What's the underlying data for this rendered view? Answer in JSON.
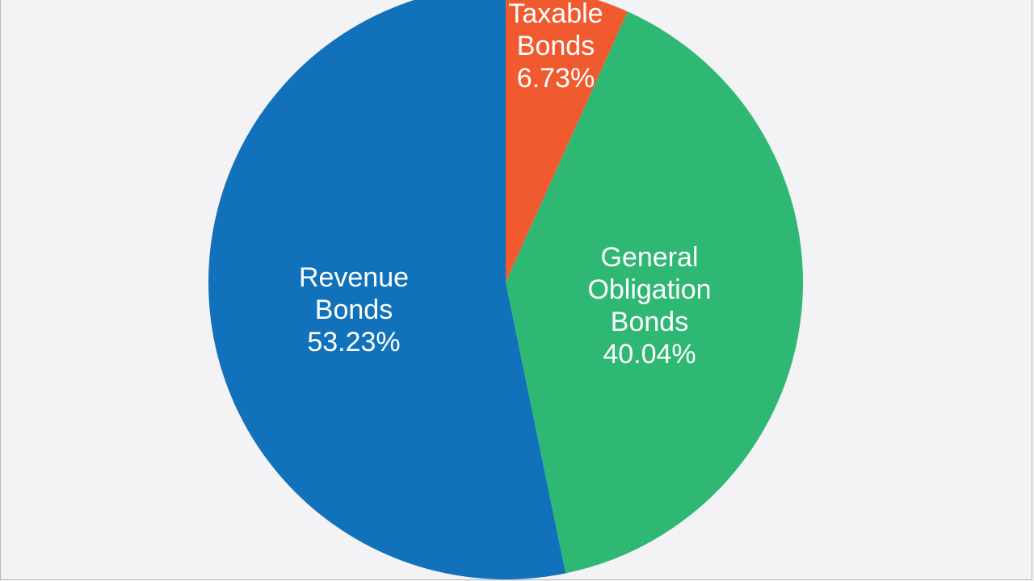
{
  "chart_data": {
    "type": "pie",
    "title": "",
    "slices": [
      {
        "label_lines": [
          "Taxable",
          "Bonds"
        ],
        "value_text": "6.73%",
        "value": 6.73,
        "color": "#f15a2e"
      },
      {
        "label_lines": [
          "General",
          "Obligation",
          "Bonds"
        ],
        "value_text": "40.04%",
        "value": 40.04,
        "color": "#2fb874"
      },
      {
        "label_lines": [
          "Revenue",
          "Bonds"
        ],
        "value_text": "53.23%",
        "value": 53.23,
        "color": "#1172bb"
      }
    ],
    "start_angle": "12 o'clock",
    "direction": "clockwise",
    "legend": "none"
  },
  "colors": {
    "background": "#f3f3f5",
    "label_text": "#ffffff"
  }
}
